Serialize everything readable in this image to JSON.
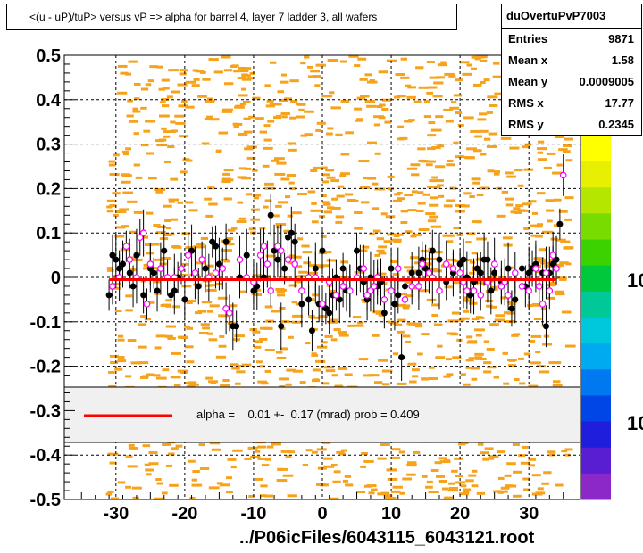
{
  "title": "<(u - uP)/tuP> versus  vP => alpha for barrel 4, layer 7 ladder 3, all wafers",
  "stats": {
    "name": "duOvertuPvP7003",
    "rows": [
      {
        "key": "Entries",
        "value": "9871"
      },
      {
        "key": "Mean x",
        "value": "1.58"
      },
      {
        "key": "Mean y",
        "value": "0.0009005"
      },
      {
        "key": "RMS x",
        "value": "17.77"
      },
      {
        "key": "RMS y",
        "value": "0.2345"
      }
    ]
  },
  "fit_legend": {
    "text": "alpha =    0.01 +-  0.17 (mrad) prob = 0.409",
    "line_color": "#ff0000"
  },
  "file_label": "../P06icFiles/6043115_6043121.root",
  "palette_labels": [
    "10",
    "10"
  ],
  "chart_data": {
    "type": "scatter",
    "xlim": [
      -37.5,
      37.5
    ],
    "ylim": [
      -0.5,
      0.5
    ],
    "xticks": [
      -30,
      -20,
      -10,
      0,
      10,
      20,
      30
    ],
    "xtick_labels": [
      "-30",
      "-20",
      "-10",
      "0",
      "10",
      "20",
      "30"
    ],
    "yticks": [
      -0.5,
      -0.4,
      -0.3,
      -0.2,
      -0.1,
      0,
      0.1,
      0.2,
      0.3,
      0.4,
      0.5
    ],
    "ytick_labels": [
      "-0.5",
      "-0.4",
      "-0.3",
      "-0.2",
      "-0.1",
      "0",
      "0.1",
      "0.2",
      "0.3",
      "0.4",
      "0.5"
    ],
    "grid": true,
    "fit_line": {
      "x": [
        -31,
        34
      ],
      "y": [
        -0.005,
        -0.005
      ],
      "color": "#ff0000"
    },
    "series": [
      {
        "marker": "filled-circle",
        "color": "#000000",
        "points": [
          [
            -31,
            -0.04
          ],
          [
            -30.5,
            0.05
          ],
          [
            -30,
            0.04
          ],
          [
            -29.5,
            0.02
          ],
          [
            -29,
            0.03
          ],
          [
            -28,
            0.01
          ],
          [
            -27.5,
            -0.02
          ],
          [
            -27,
            0.05
          ],
          [
            -26,
            -0.04
          ],
          [
            -25,
            0.02
          ],
          [
            -24.5,
            0.01
          ],
          [
            -24,
            -0.03
          ],
          [
            -23,
            0.06
          ],
          [
            -22,
            -0.04
          ],
          [
            -21.5,
            -0.03
          ],
          [
            -21,
            0.0
          ],
          [
            -20,
            -0.05
          ],
          [
            -19,
            0.06
          ],
          [
            -18,
            -0.02
          ],
          [
            -17,
            0.02
          ],
          [
            -16,
            0.08
          ],
          [
            -15.5,
            0.07
          ],
          [
            -15,
            0.03
          ],
          [
            -14,
            0.08
          ],
          [
            -13,
            -0.11
          ],
          [
            -12.5,
            -0.11
          ],
          [
            -12,
            0.0
          ],
          [
            -11,
            0.05
          ],
          [
            -10,
            -0.03
          ],
          [
            -9.5,
            -0.02
          ],
          [
            -8.5,
            0.0
          ],
          [
            -7.5,
            0.14
          ],
          [
            -7,
            0.06
          ],
          [
            -6.5,
            0.04
          ],
          [
            -6,
            -0.11
          ],
          [
            -5.5,
            0.02
          ],
          [
            -5,
            0.09
          ],
          [
            -4.5,
            0.1
          ],
          [
            -4,
            0.08
          ],
          [
            -3,
            -0.06
          ],
          [
            -2,
            -0.05
          ],
          [
            -1.5,
            -0.12
          ],
          [
            -1,
            0.02
          ],
          [
            -0.5,
            -0.06
          ],
          [
            0,
            0.06
          ],
          [
            0.5,
            -0.07
          ],
          [
            1,
            -0.08
          ],
          [
            1.5,
            -0.04
          ],
          [
            2,
            0.0
          ],
          [
            2.5,
            -0.05
          ],
          [
            3,
            0.02
          ],
          [
            3.5,
            -0.03
          ],
          [
            4,
            -0.03
          ],
          [
            5,
            0.06
          ],
          [
            5.5,
            0.02
          ],
          [
            6,
            -0.01
          ],
          [
            6.5,
            -0.05
          ],
          [
            7,
            0.0
          ],
          [
            8,
            -0.02
          ],
          [
            8.5,
            -0.01
          ],
          [
            9,
            -0.08
          ],
          [
            10,
            0.02
          ],
          [
            10.5,
            -0.06
          ],
          [
            11,
            -0.04
          ],
          [
            11.5,
            -0.18
          ],
          [
            12,
            -0.02
          ],
          [
            13,
            0.01
          ],
          [
            14,
            0.01
          ],
          [
            14.5,
            0.04
          ],
          [
            15,
            0.02
          ],
          [
            15.5,
            0.01
          ],
          [
            16,
            0.06
          ],
          [
            17,
            0.04
          ],
          [
            18,
            -0.01
          ],
          [
            19,
            0.01
          ],
          [
            20,
            0.03
          ],
          [
            20.5,
            0.04
          ],
          [
            21,
            0.0
          ],
          [
            21.5,
            -0.04
          ],
          [
            22,
            -0.01
          ],
          [
            22.5,
            0.02
          ],
          [
            23,
            0.01
          ],
          [
            23.5,
            0.04
          ],
          [
            24,
            0.04
          ],
          [
            24.5,
            -0.03
          ],
          [
            25,
            0.01
          ],
          [
            26,
            -0.01
          ],
          [
            27,
            0.02
          ],
          [
            27.5,
            -0.07
          ],
          [
            28,
            -0.05
          ],
          [
            29,
            0.02
          ],
          [
            29.5,
            -0.02
          ],
          [
            30,
            0.01
          ],
          [
            30.5,
            0.02
          ],
          [
            31,
            0.03
          ],
          [
            32,
            0.01
          ],
          [
            32.5,
            -0.11
          ],
          [
            33,
            0.01
          ],
          [
            33.5,
            0.03
          ],
          [
            34,
            0.04
          ],
          [
            34.5,
            0.12
          ]
        ]
      },
      {
        "marker": "open-circle",
        "color": "#ff00ff",
        "points": [
          [
            -30.5,
            -0.02
          ],
          [
            -29.5,
            0.0
          ],
          [
            -28.5,
            0.07
          ],
          [
            -28,
            0.04
          ],
          [
            -27,
            0.0
          ],
          [
            -26.5,
            0.09
          ],
          [
            -26,
            0.1
          ],
          [
            -25.5,
            -0.06
          ],
          [
            -25,
            0.03
          ],
          [
            -23.5,
            0.02
          ],
          [
            -22.5,
            0.0
          ],
          [
            -21.5,
            0.0
          ],
          [
            -20.5,
            0.02
          ],
          [
            -19.5,
            0.05
          ],
          [
            -18.5,
            0.01
          ],
          [
            -17.5,
            0.04
          ],
          [
            -16.5,
            0.0
          ],
          [
            -15.5,
            0.01
          ],
          [
            -14.5,
            0.02
          ],
          [
            -14,
            -0.07
          ],
          [
            -13.5,
            -0.08
          ],
          [
            -12,
            0.04
          ],
          [
            -11,
            0.0
          ],
          [
            -10,
            -0.01
          ],
          [
            -9,
            0.05
          ],
          [
            -8.5,
            0.07
          ],
          [
            -8,
            0.03
          ],
          [
            -7.5,
            -0.03
          ],
          [
            -6.5,
            0.07
          ],
          [
            -6,
            0.06
          ],
          [
            -5,
            0.04
          ],
          [
            -4,
            0.03
          ],
          [
            -3,
            -0.03
          ],
          [
            -2,
            0.0
          ],
          [
            -1,
            0.0
          ],
          [
            0,
            -0.06
          ],
          [
            1,
            -0.01
          ],
          [
            2,
            -0.04
          ],
          [
            3,
            -0.02
          ],
          [
            4,
            -0.03
          ],
          [
            5,
            0.0
          ],
          [
            6,
            0.02
          ],
          [
            6.5,
            -0.04
          ],
          [
            7,
            -0.03
          ],
          [
            7.5,
            -0.02
          ],
          [
            8,
            0.0
          ],
          [
            9,
            -0.05
          ],
          [
            10,
            -0.03
          ],
          [
            11,
            0.02
          ],
          [
            12,
            -0.05
          ],
          [
            13,
            -0.02
          ],
          [
            14,
            -0.02
          ],
          [
            14.5,
            0.03
          ],
          [
            15.5,
            0.01
          ],
          [
            16,
            0.0
          ],
          [
            17,
            -0.03
          ],
          [
            18,
            0.03
          ],
          [
            19,
            0.02
          ],
          [
            20,
            0.01
          ],
          [
            20.5,
            -0.01
          ],
          [
            21,
            -0.03
          ],
          [
            22,
            -0.03
          ],
          [
            23,
            -0.04
          ],
          [
            24,
            -0.01
          ],
          [
            25,
            0.03
          ],
          [
            26,
            -0.02
          ],
          [
            26.5,
            -0.01
          ],
          [
            27,
            -0.04
          ],
          [
            28,
            0.01
          ],
          [
            29,
            -0.02
          ],
          [
            30,
            -0.03
          ],
          [
            31,
            0.02
          ],
          [
            31.5,
            -0.02
          ],
          [
            32,
            -0.06
          ],
          [
            32.5,
            0.01
          ],
          [
            33,
            -0.03
          ],
          [
            33.5,
            0.05
          ],
          [
            34,
            0.02
          ],
          [
            35,
            0.23
          ]
        ]
      }
    ]
  }
}
